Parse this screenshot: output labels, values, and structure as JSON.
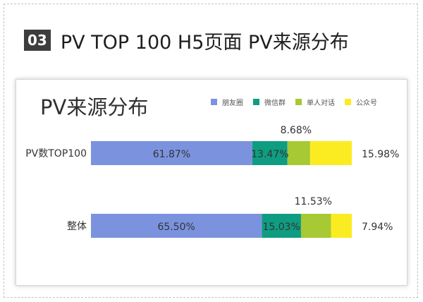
{
  "header": {
    "number": "03",
    "title": "PV TOP 100 H5页面 PV来源分布"
  },
  "colors": {
    "朋友圈": "#7b93de",
    "微信群": "#0f9d82",
    "单人对话": "#a7c933",
    "公众号": "#fbec22"
  },
  "chart_data": {
    "type": "bar",
    "orientation": "horizontal",
    "stacked": true,
    "title": "PV来源分布",
    "xlabel": "",
    "ylabel": "",
    "xlim": [
      0,
      100
    ],
    "grid": false,
    "legend_position": "top-right",
    "categories": [
      "PV数TOP100",
      "整体"
    ],
    "series": [
      {
        "name": "朋友圈",
        "values": [
          61.87,
          65.5
        ],
        "labels": [
          "61.87%",
          "65.50%"
        ]
      },
      {
        "name": "微信群",
        "values": [
          13.47,
          15.03
        ],
        "labels": [
          "13.47%",
          "15.03%"
        ]
      },
      {
        "name": "单人对话",
        "values": [
          8.68,
          11.53
        ],
        "labels": [
          "8.68%",
          "11.53%"
        ]
      },
      {
        "name": "公众号",
        "values": [
          15.98,
          7.94
        ],
        "labels": [
          "15.98%",
          "7.94%"
        ]
      }
    ]
  }
}
